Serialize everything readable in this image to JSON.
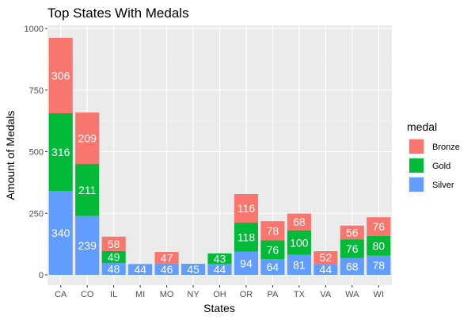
{
  "chart_data": {
    "type": "bar",
    "stacked": true,
    "title": "Top States With Medals",
    "xlabel": "States",
    "ylabel": "Amount of Medals",
    "ylim": [
      0,
      1000
    ],
    "yticks": [
      0,
      250,
      500,
      750,
      1000
    ],
    "grid": true,
    "legend": {
      "title": "medal",
      "placement": "right"
    },
    "categories": [
      "CA",
      "CO",
      "IL",
      "MI",
      "MO",
      "NY",
      "OH",
      "OR",
      "PA",
      "TX",
      "VA",
      "WA",
      "WI"
    ],
    "series": [
      {
        "name": "Silver",
        "color": "#619CFF",
        "values": [
          340,
          239,
          48,
          44,
          46,
          45,
          44,
          94,
          64,
          81,
          44,
          68,
          78
        ]
      },
      {
        "name": "Gold",
        "color": "#00BA38",
        "values": [
          316,
          211,
          49,
          0,
          0,
          0,
          43,
          118,
          76,
          100,
          0,
          76,
          80
        ]
      },
      {
        "name": "Bronze",
        "color": "#F8766D",
        "values": [
          306,
          209,
          58,
          0,
          47,
          0,
          0,
          116,
          78,
          68,
          52,
          56,
          76
        ]
      }
    ],
    "legend_order": [
      "Bronze",
      "Gold",
      "Silver"
    ]
  }
}
